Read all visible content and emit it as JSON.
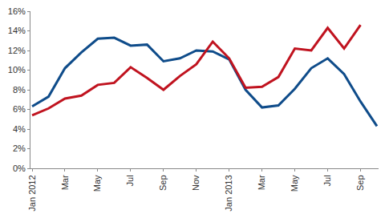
{
  "chart_data": {
    "type": "line",
    "categories": [
      "Jan 2012",
      null,
      "Mar",
      null,
      "May",
      null,
      "Jul",
      null,
      "Sep",
      null,
      "Nov",
      null,
      "Jan 2013",
      null,
      "Mar",
      null,
      "May",
      null,
      "Jul",
      null,
      "Sep",
      null
    ],
    "series": [
      {
        "color": "#0f4c8a",
        "values": [
          6.3,
          7.3,
          10.2,
          11.8,
          13.2,
          13.3,
          12.5,
          12.6,
          10.9,
          11.2,
          12.0,
          11.9,
          11.1,
          8.0,
          6.2,
          6.4,
          8.1,
          10.2,
          11.2,
          9.6,
          6.8,
          4.3
        ]
      },
      {
        "color": "#c0131f",
        "values": [
          5.4,
          6.1,
          7.1,
          7.4,
          8.5,
          8.7,
          10.3,
          9.2,
          8.0,
          9.4,
          10.6,
          12.9,
          11.2,
          8.2,
          8.3,
          9.3,
          12.2,
          12.0,
          14.3,
          12.2,
          14.6,
          null
        ]
      }
    ],
    "ylim": [
      0,
      16
    ],
    "yticks": [
      {
        "value": 0,
        "label": "0%"
      },
      {
        "value": 2,
        "label": "2%"
      },
      {
        "value": 4,
        "label": "4%"
      },
      {
        "value": 6,
        "label": "6%"
      },
      {
        "value": 8,
        "label": "8%"
      },
      {
        "value": 10,
        "label": "10%"
      },
      {
        "value": 12,
        "label": "12%"
      },
      {
        "value": 14,
        "label": "14%"
      },
      {
        "value": 16,
        "label": "16%"
      }
    ],
    "grid": false
  }
}
